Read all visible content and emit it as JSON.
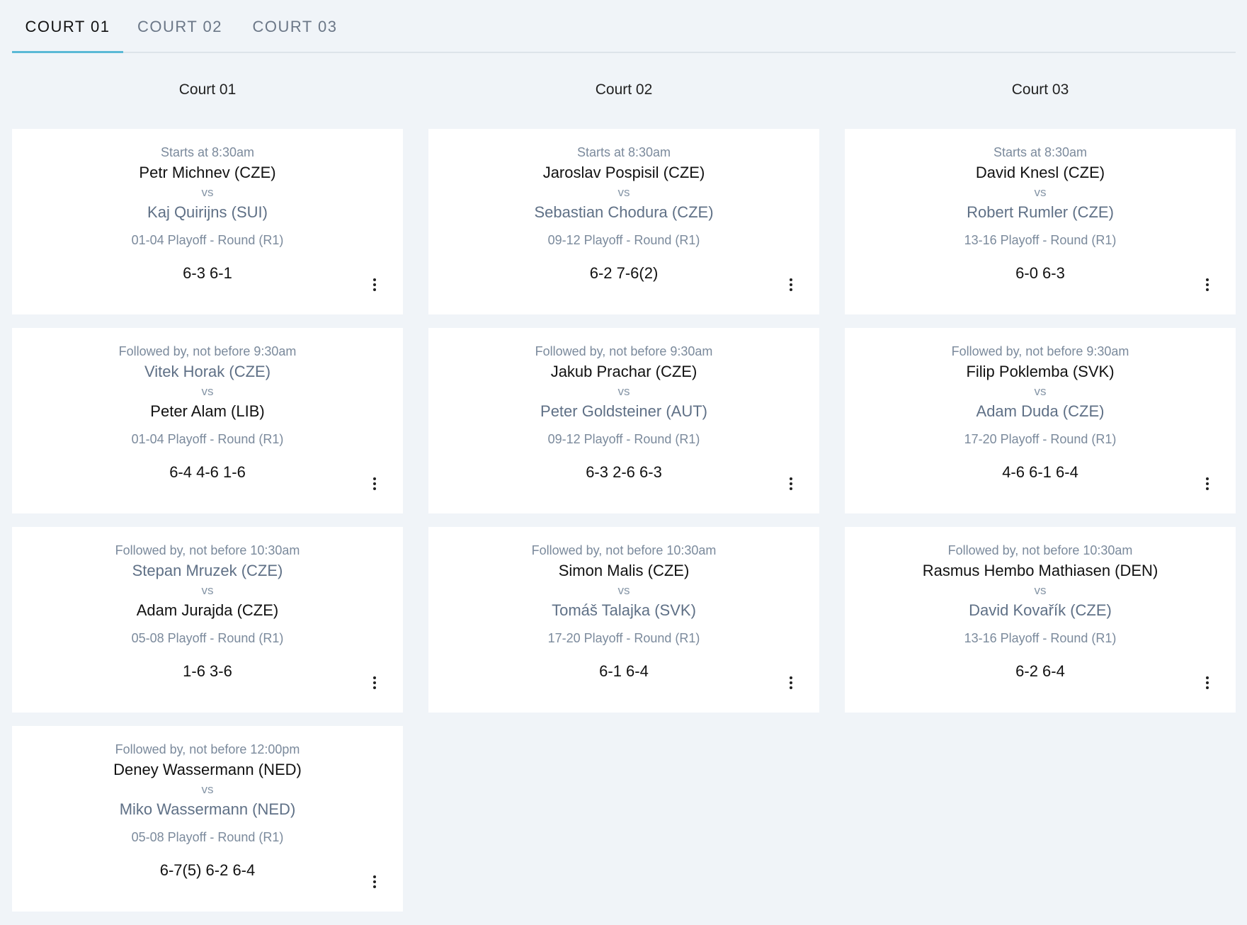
{
  "tabs": [
    {
      "label": "COURT 01",
      "active": true
    },
    {
      "label": "COURT 02",
      "active": false
    },
    {
      "label": "COURT 03",
      "active": false
    }
  ],
  "courts": [
    {
      "title": "Court 01",
      "matches": [
        {
          "timing": "Starts at 8:30am",
          "p1": "Petr Michnev (CZE)",
          "p1_winner": true,
          "vs": "vs",
          "p2": "Kaj Quirijns (SUI)",
          "p2_winner": false,
          "round": "01-04 Playoff - Round (R1)",
          "score": "6-3 6-1"
        },
        {
          "timing": "Followed by, not before 9:30am",
          "p1": "Vitek Horak (CZE)",
          "p1_winner": false,
          "vs": "vs",
          "p2": "Peter Alam (LIB)",
          "p2_winner": true,
          "round": "01-04 Playoff - Round (R1)",
          "score": "6-4 4-6 1-6"
        },
        {
          "timing": "Followed by, not before 10:30am",
          "p1": "Stepan Mruzek (CZE)",
          "p1_winner": false,
          "vs": "vs",
          "p2": "Adam Jurajda (CZE)",
          "p2_winner": true,
          "round": "05-08 Playoff - Round (R1)",
          "score": "1-6 3-6"
        },
        {
          "timing": "Followed by, not before 12:00pm",
          "p1": "Deney Wassermann (NED)",
          "p1_winner": true,
          "vs": "vs",
          "p2": "Miko Wassermann (NED)",
          "p2_winner": false,
          "round": "05-08 Playoff - Round (R1)",
          "score": "6-7(5) 6-2 6-4"
        }
      ]
    },
    {
      "title": "Court 02",
      "matches": [
        {
          "timing": "Starts at 8:30am",
          "p1": "Jaroslav Pospisil (CZE)",
          "p1_winner": true,
          "vs": "vs",
          "p2": "Sebastian Chodura (CZE)",
          "p2_winner": false,
          "round": "09-12 Playoff - Round (R1)",
          "score": "6-2 7-6(2)"
        },
        {
          "timing": "Followed by, not before 9:30am",
          "p1": "Jakub Prachar (CZE)",
          "p1_winner": true,
          "vs": "vs",
          "p2": "Peter Goldsteiner (AUT)",
          "p2_winner": false,
          "round": "09-12 Playoff - Round (R1)",
          "score": "6-3 2-6 6-3"
        },
        {
          "timing": "Followed by, not before 10:30am",
          "p1": "Simon Malis (CZE)",
          "p1_winner": true,
          "vs": "vs",
          "p2": "Tomáš Talajka (SVK)",
          "p2_winner": false,
          "round": "17-20 Playoff - Round (R1)",
          "score": "6-1 6-4"
        }
      ]
    },
    {
      "title": "Court 03",
      "matches": [
        {
          "timing": "Starts at 8:30am",
          "p1": "David Knesl (CZE)",
          "p1_winner": true,
          "vs": "vs",
          "p2": "Robert Rumler (CZE)",
          "p2_winner": false,
          "round": "13-16 Playoff - Round (R1)",
          "score": "6-0 6-3"
        },
        {
          "timing": "Followed by, not before 9:30am",
          "p1": "Filip Poklemba (SVK)",
          "p1_winner": true,
          "vs": "vs",
          "p2": "Adam Duda (CZE)",
          "p2_winner": false,
          "round": "17-20 Playoff - Round (R1)",
          "score": "4-6 6-1 6-4"
        },
        {
          "timing": "Followed by, not before 10:30am",
          "p1": "Rasmus Hembo Mathiasen (DEN)",
          "p1_winner": true,
          "vs": "vs",
          "p2": "David Kovařík (CZE)",
          "p2_winner": false,
          "round": "13-16 Playoff - Round (R1)",
          "score": "6-2 6-4"
        }
      ]
    }
  ]
}
